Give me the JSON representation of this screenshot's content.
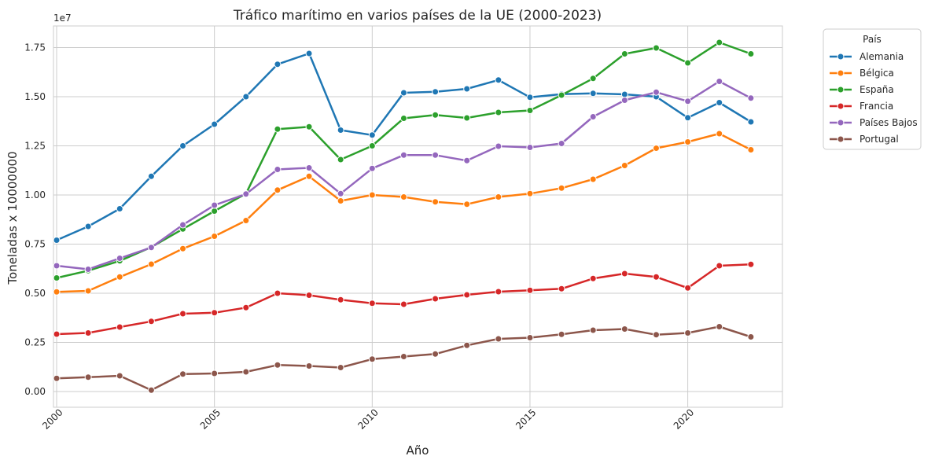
{
  "chart_data": {
    "type": "line",
    "title": "Tráfico marítimo en varios países de la UE (2000-2023)",
    "xlabel": "Año",
    "ylabel": "Toneladas x 10000000",
    "y_offset_label": "1e7",
    "xlim": [
      1999.9,
      2023.0
    ],
    "ylim": [
      -0.08,
      1.86
    ],
    "x_ticks": [
      2000,
      2005,
      2010,
      2015,
      2020
    ],
    "y_ticks": [
      0.0,
      0.25,
      0.5,
      0.75,
      1.0,
      1.25,
      1.5,
      1.75
    ],
    "y_tick_labels": [
      "0.00",
      "0.25",
      "0.50",
      "0.75",
      "1.00",
      "1.25",
      "1.50",
      "1.75"
    ],
    "grid": true,
    "legend_title": "País",
    "legend_position": "outside-top-right",
    "x": [
      2000,
      2001,
      2002,
      2003,
      2004,
      2005,
      2006,
      2007,
      2008,
      2009,
      2010,
      2011,
      2012,
      2013,
      2014,
      2015,
      2016,
      2017,
      2018,
      2019,
      2020,
      2021,
      2022
    ],
    "series": [
      {
        "name": "Alemania",
        "color": "#1f77b4",
        "values": [
          0.77,
          0.84,
          0.93,
          1.095,
          1.25,
          1.36,
          1.5,
          1.665,
          1.72,
          1.33,
          1.305,
          1.52,
          1.525,
          1.54,
          1.585,
          1.497,
          1.513,
          1.517,
          1.512,
          1.5,
          1.393,
          1.47,
          1.372
        ]
      },
      {
        "name": "Bélgica",
        "color": "#ff7f0e",
        "values": [
          0.507,
          0.512,
          0.583,
          0.648,
          0.727,
          0.79,
          0.87,
          1.025,
          1.095,
          0.97,
          1.0,
          0.99,
          0.965,
          0.953,
          0.99,
          1.007,
          1.035,
          1.08,
          1.15,
          1.238,
          1.27,
          1.312,
          1.23
        ]
      },
      {
        "name": "España",
        "color": "#2ca02c",
        "values": [
          0.578,
          0.615,
          0.665,
          0.735,
          0.827,
          0.918,
          1.007,
          1.335,
          1.347,
          1.18,
          1.25,
          1.39,
          1.407,
          1.392,
          1.42,
          1.43,
          1.508,
          1.593,
          1.718,
          1.748,
          1.672,
          1.776,
          1.718
        ]
      },
      {
        "name": "Francia",
        "color": "#d62728",
        "values": [
          0.292,
          0.298,
          0.328,
          0.357,
          0.396,
          0.401,
          0.427,
          0.5,
          0.49,
          0.467,
          0.449,
          0.444,
          0.472,
          0.492,
          0.508,
          0.515,
          0.523,
          0.575,
          0.6,
          0.583,
          0.527,
          0.64,
          0.647
        ]
      },
      {
        "name": "Países Bajos",
        "color": "#9467bd",
        "values": [
          0.64,
          0.622,
          0.678,
          0.733,
          0.848,
          0.948,
          1.005,
          1.13,
          1.138,
          1.007,
          1.135,
          1.203,
          1.203,
          1.175,
          1.248,
          1.242,
          1.262,
          1.398,
          1.482,
          1.523,
          1.477,
          1.578,
          1.493
        ]
      },
      {
        "name": "Portugal",
        "color": "#8c564b",
        "values": [
          0.067,
          0.073,
          0.08,
          0.007,
          0.089,
          0.092,
          0.1,
          0.135,
          0.13,
          0.122,
          0.165,
          0.178,
          0.191,
          0.235,
          0.268,
          0.274,
          0.291,
          0.312,
          0.318,
          0.289,
          0.298,
          0.33,
          0.278
        ]
      }
    ]
  }
}
